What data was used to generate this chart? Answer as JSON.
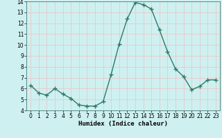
{
  "x": [
    0,
    1,
    2,
    3,
    4,
    5,
    6,
    7,
    8,
    9,
    10,
    11,
    12,
    13,
    14,
    15,
    16,
    17,
    18,
    19,
    20,
    21,
    22,
    23
  ],
  "y": [
    6.3,
    5.6,
    5.4,
    6.0,
    5.5,
    5.1,
    4.5,
    4.4,
    4.4,
    4.8,
    7.3,
    10.1,
    12.4,
    13.9,
    13.7,
    13.3,
    11.4,
    9.4,
    7.8,
    7.1,
    5.9,
    6.2,
    6.8,
    6.8
  ],
  "line_color": "#2d7a6a",
  "marker": "+",
  "marker_size": 4,
  "line_width": 1.0,
  "xlabel": "Humidex (Indice chaleur)",
  "xlim": [
    -0.5,
    23.5
  ],
  "ylim": [
    4,
    14
  ],
  "yticks": [
    4,
    5,
    6,
    7,
    8,
    9,
    10,
    11,
    12,
    13,
    14
  ],
  "xticks": [
    0,
    1,
    2,
    3,
    4,
    5,
    6,
    7,
    8,
    9,
    10,
    11,
    12,
    13,
    14,
    15,
    16,
    17,
    18,
    19,
    20,
    21,
    22,
    23
  ],
  "bg_color": "#cff0f0",
  "grid_color": "#e8c8c8",
  "tick_fontsize": 5.5,
  "xlabel_fontsize": 6.5
}
